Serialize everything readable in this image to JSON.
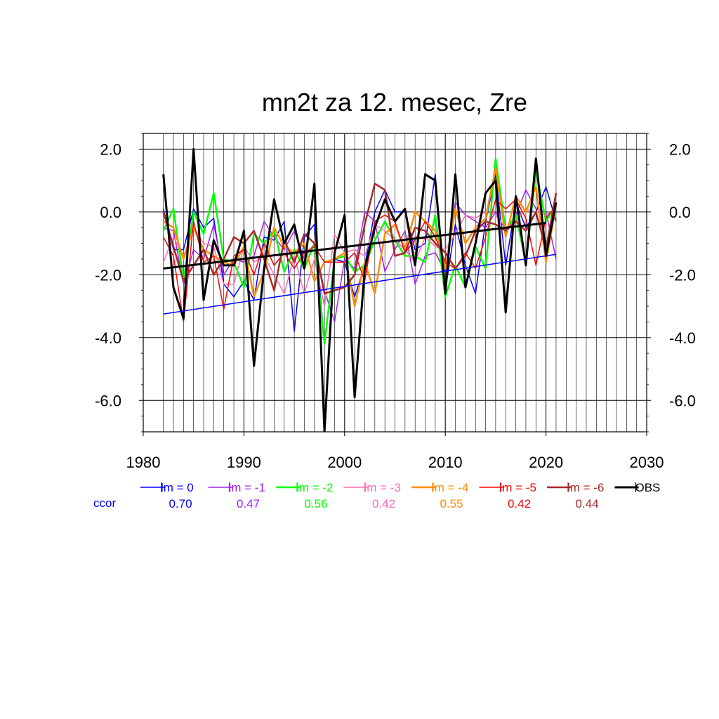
{
  "chart_data": {
    "type": "line",
    "title": "mn2t za 12. mesec, Zre",
    "xlabel": "",
    "ylabel": "",
    "xlim": [
      1980,
      2030
    ],
    "ylim": [
      -7.0,
      2.5
    ],
    "x_ticks": [
      "1980",
      "1990",
      "2000",
      "2010",
      "2020",
      "2030"
    ],
    "y_ticks": [
      "2.0",
      "0.0",
      "-2.0",
      "-4.0",
      "-6.0"
    ],
    "y_tick_values": [
      2,
      0,
      -2,
      -4,
      -6
    ],
    "grid": true,
    "legend_position": "bottom",
    "ccor_label": "ccor",
    "x": [
      1982,
      1983,
      1984,
      1985,
      1986,
      1987,
      1988,
      1989,
      1990,
      1991,
      1992,
      1993,
      1994,
      1995,
      1996,
      1997,
      1998,
      1999,
      2000,
      2001,
      2002,
      2003,
      2004,
      2005,
      2006,
      2007,
      2008,
      2009,
      2010,
      2011,
      2012,
      2013,
      2014,
      2015,
      2016,
      2017,
      2018,
      2019,
      2020,
      2021
    ],
    "series": [
      {
        "name": "lm = 0",
        "color": "#0000ff",
        "ccor": "0.70",
        "width": 1.5,
        "values": [
          0.1,
          -1.2,
          -1.2,
          0.1,
          -0.5,
          -0.2,
          -2.3,
          -2.7,
          -2.2,
          -2.8,
          -0.8,
          -0.9,
          -0.3,
          -3.8,
          -0.8,
          -0.4,
          -4.2,
          -1.5,
          -1.6,
          -2.7,
          -1.7,
          0.0,
          0.7,
          0.0,
          0.0,
          -1.2,
          -1.0,
          1.2,
          -2.5,
          -0.4,
          -1.7,
          -2.6,
          -0.3,
          1.2,
          -1.7,
          0.3,
          -0.5,
          0.0,
          0.8,
          -0.3
        ]
      },
      {
        "name": "lm = -1",
        "color": "#a020f0",
        "ccor": "0.47",
        "width": 1.5,
        "values": [
          -0.5,
          -0.6,
          -2.3,
          -1.2,
          -1.5,
          -0.4,
          -2.0,
          -1.5,
          -1.6,
          -1.4,
          -0.3,
          -0.8,
          -1.2,
          -0.6,
          -1.5,
          -1.0,
          -2.5,
          -3.5,
          -1.5,
          -1.8,
          0.0,
          -0.3,
          -1.9,
          -1.2,
          -0.6,
          -2.3,
          -1.4,
          -1.3,
          -1.9,
          0.3,
          -0.1,
          -0.3,
          -0.5,
          0.0,
          -0.6,
          -0.1,
          0.7,
          0.1,
          0.0,
          -1.5
        ]
      },
      {
        "name": "lm = -2",
        "color": "#00ff00",
        "ccor": "0.56",
        "width": 2.5,
        "values": [
          -0.6,
          0.1,
          -2.2,
          0.0,
          -0.7,
          0.6,
          -1.5,
          -1.6,
          -2.4,
          -0.7,
          -1.0,
          -0.6,
          -1.9,
          -1.2,
          -1.8,
          -1.0,
          -4.2,
          -1.5,
          -1.4,
          -1.9,
          -1.7,
          -0.9,
          -0.3,
          -0.9,
          -1.4,
          -1.4,
          -1.6,
          -0.1,
          -2.7,
          -1.7,
          -2.4,
          -1.1,
          -1.8,
          1.7,
          -0.6,
          -0.1,
          -1.6,
          1.3,
          -0.3,
          0.2
        ]
      },
      {
        "name": "lm = -3",
        "color": "#ff69b4",
        "ccor": "0.42",
        "width": 1.5,
        "values": [
          -1.6,
          -0.8,
          -1.4,
          -0.5,
          -1.0,
          -1.1,
          -2.3,
          -2.3,
          -1.1,
          -1.6,
          -1.4,
          -2.0,
          -2.6,
          -1.4,
          -2.6,
          -1.5,
          -3.0,
          -0.7,
          -1.3,
          -1.2,
          -1.4,
          -0.4,
          -0.6,
          -0.9,
          -1.2,
          -1.6,
          -0.8,
          -1.1,
          -1.2,
          -0.7,
          -0.1,
          -0.2,
          0.0,
          -0.1,
          -0.5,
          -0.3,
          0.1,
          0.0,
          -0.1,
          0.1
        ]
      },
      {
        "name": "lm = -4",
        "color": "#ff8c00",
        "ccor": "0.55",
        "width": 2.5,
        "values": [
          -0.3,
          -0.5,
          -1.5,
          -0.5,
          -1.2,
          -1.4,
          -1.6,
          -1.7,
          -1.1,
          -2.7,
          -1.9,
          -0.5,
          -1.1,
          -1.3,
          -1.0,
          -2.2,
          -1.6,
          -1.5,
          -1.3,
          -3.0,
          -1.6,
          -2.6,
          -0.7,
          -0.4,
          -1.2,
          0.0,
          -0.3,
          -0.6,
          -1.8,
          0.1,
          -1.0,
          -0.5,
          -0.2,
          1.4,
          -0.8,
          0.5,
          0.0,
          0.8,
          -1.6,
          0.2
        ]
      },
      {
        "name": "lm = -5",
        "color": "#ff0000",
        "ccor": "0.42",
        "width": 1.5,
        "values": [
          -0.8,
          -1.4,
          -3.5,
          -0.3,
          -1.6,
          -1.4,
          -3.1,
          -1.4,
          -1.2,
          -2.0,
          -1.0,
          -1.7,
          -1.3,
          -1.8,
          -1.3,
          -1.1,
          -1.6,
          -1.6,
          -1.6,
          -1.3,
          -2.2,
          -0.3,
          -0.1,
          -0.3,
          -1.3,
          -0.9,
          -0.3,
          -0.8,
          -1.6,
          -1.8,
          -1.3,
          -1.8,
          -0.8,
          0.4,
          0.1,
          0.4,
          -0.2,
          -1.7,
          -0.2,
          0.2
        ]
      },
      {
        "name": "lm = -6",
        "color": "#a52a2a",
        "ccor": "0.44",
        "width": 2.5,
        "values": [
          0.0,
          -1.1,
          -2.2,
          -1.7,
          -1.2,
          -2.0,
          -1.5,
          -0.8,
          -1.0,
          -0.6,
          -1.5,
          -2.5,
          -0.9,
          -1.6,
          -0.7,
          -1.0,
          -2.6,
          -2.5,
          -2.4,
          -2.0,
          -0.4,
          0.9,
          0.7,
          -1.4,
          -1.3,
          -0.5,
          -0.6,
          -1.0,
          -1.3,
          -1.8,
          -1.4,
          -0.6,
          -0.3,
          -0.4,
          -0.6,
          -0.3,
          -0.6,
          0.0,
          -1.2,
          0.6
        ]
      },
      {
        "name": "OBS",
        "color": "#000000",
        "ccor": "",
        "width": 3,
        "values": [
          1.2,
          -2.4,
          -3.4,
          2.0,
          -2.8,
          -0.9,
          -1.7,
          -1.7,
          -0.6,
          -4.9,
          -1.8,
          0.4,
          -1.0,
          -0.4,
          -1.8,
          0.9,
          -7.0,
          -1.3,
          -0.1,
          -5.9,
          -1.8,
          -0.5,
          0.4,
          -0.3,
          0.1,
          -1.7,
          1.2,
          1.0,
          -2.6,
          1.2,
          -2.4,
          -1.0,
          0.6,
          1.0,
          -3.2,
          0.5,
          -1.7,
          1.7,
          -1.4,
          0.3
        ]
      }
    ],
    "trends": [
      {
        "series": "lm = 0",
        "color": "#0000ff",
        "width": 1.5,
        "x": [
          1982,
          2021
        ],
        "y": [
          -3.25,
          -1.35
        ]
      },
      {
        "series": "OBS",
        "color": "#000000",
        "width": 3,
        "x": [
          1982,
          2020
        ],
        "y": [
          -1.8,
          -0.35
        ]
      }
    ]
  }
}
